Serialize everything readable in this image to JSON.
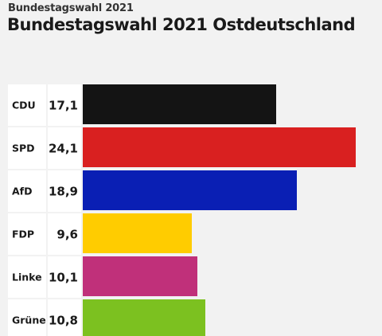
{
  "header": {
    "kicker": "Bundestagswahl 2021",
    "title": "Bundestagswahl 2021 Ostdeutschland"
  },
  "chart_data": {
    "type": "bar",
    "orientation": "horizontal",
    "title": "Bundestagswahl 2021 Ostdeutschland",
    "categories": [
      "CDU",
      "SPD",
      "AfD",
      "FDP",
      "Linke",
      "Grüne"
    ],
    "values": [
      17.1,
      24.1,
      18.9,
      9.6,
      10.1,
      10.8
    ],
    "value_labels": [
      "17,1",
      "24,1",
      "18,9",
      "9,6",
      "10,1",
      "10,8"
    ],
    "colors": [
      "#141414",
      "#d92020",
      "#0a1fb4",
      "#ffcc00",
      "#c0307a",
      "#7cc120"
    ],
    "xlim": [
      0,
      24.1
    ],
    "grid": false,
    "legend": "none"
  }
}
